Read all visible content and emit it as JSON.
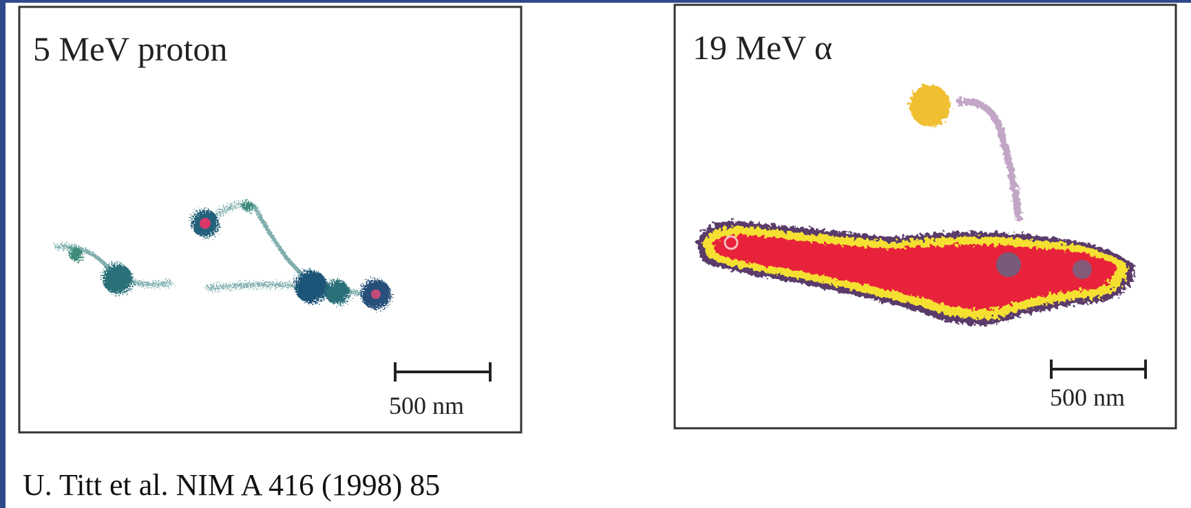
{
  "panels": [
    {
      "label": "5 MeV proton",
      "scale_bar": "500 nm"
    },
    {
      "label": "19 MeV α",
      "scale_bar": "500 nm"
    }
  ],
  "citation": "U. Titt et al. NIM A 416 (1998) 85"
}
